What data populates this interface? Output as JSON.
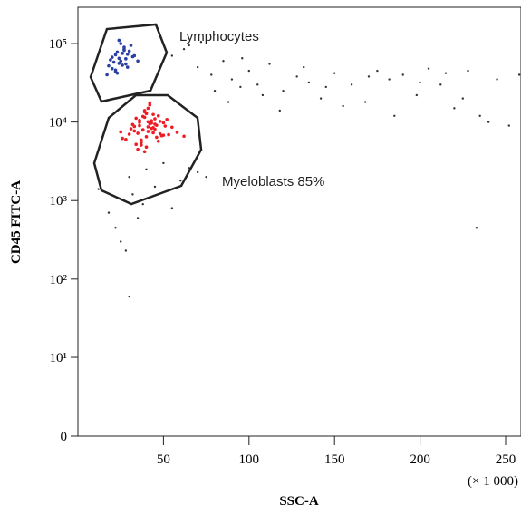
{
  "chart_data": {
    "type": "scatter",
    "xlabel": "SSC-A",
    "ylabel": "CD45 FITC-A",
    "x_unit_note": "(× 1 000)",
    "annotations": [
      "Lymphocytes",
      "Myeloblasts 85%"
    ],
    "xlim": [
      0,
      259
    ],
    "xticks": [
      50,
      100,
      150,
      200,
      250
    ],
    "ylim": [
      0,
      290000
    ],
    "yscale": "biexponential",
    "yticks": [
      0,
      {
        "value": 10,
        "label": "10¹"
      },
      {
        "value": 100,
        "label": "10²"
      },
      {
        "value": 1000,
        "label": "10³"
      },
      {
        "value": 10000,
        "label": "10⁴"
      },
      {
        "value": 100000,
        "label": "10⁵"
      }
    ],
    "series": [
      {
        "color": "#ee1c24",
        "x": [
          38,
          42,
          35,
          45,
          40,
          33,
          48,
          37,
          44,
          41,
          36,
          50,
          39,
          43,
          30,
          46,
          34,
          52,
          41,
          38,
          55,
          28,
          47,
          40,
          36,
          44,
          42,
          32,
          49,
          39,
          37,
          45,
          58,
          26,
          43,
          40,
          35,
          51,
          38,
          46,
          41,
          33,
          47,
          39,
          44,
          36,
          53,
          42,
          31,
          48,
          40,
          37,
          45,
          62,
          25,
          43,
          39,
          50,
          34,
          41
        ],
        "values": [
          8000,
          9500,
          7200,
          11000,
          6500,
          8800,
          10200,
          5900,
          12500,
          7600,
          9900,
          6800,
          13500,
          8300,
          7000,
          9100,
          5200,
          10800,
          15000,
          7900,
          8600,
          6000,
          12000,
          4800,
          10500,
          7300,
          16500,
          9300,
          6700,
          11500,
          5500,
          8100,
          7400,
          6200,
          9700,
          13000,
          4500,
          8900,
          11800,
          6400,
          10100,
          7700,
          5700,
          14000,
          8500,
          9000,
          6900,
          17500,
          8200,
          7100,
          12800,
          5100,
          9400,
          6600,
          7500,
          10400,
          4200,
          9800,
          11200,
          8700
        ]
      },
      {
        "color": "#2b3fa0",
        "x": [
          25,
          22,
          28,
          20,
          30,
          24,
          18,
          27,
          32,
          23,
          26,
          21,
          29,
          19,
          25,
          33,
          22,
          27,
          24,
          17,
          28,
          31,
          23,
          26,
          20,
          35,
          24,
          22,
          29,
          27
        ],
        "values": [
          60000,
          72000,
          55000,
          48000,
          80000,
          65000,
          52000,
          90000,
          68000,
          42000,
          75000,
          58000,
          50000,
          62000,
          100000,
          70000,
          46000,
          85000,
          56000,
          40000,
          64000,
          95000,
          78000,
          53000,
          67000,
          60000,
          110000,
          44000,
          73000,
          82000
        ]
      },
      {
        "color": "#333333",
        "x": [
          55,
          62,
          70,
          78,
          85,
          90,
          95,
          100,
          105,
          112,
          120,
          128,
          135,
          142,
          150,
          160,
          168,
          175,
          182,
          190,
          198,
          205,
          212,
          220,
          228,
          235,
          245,
          252,
          258,
          65,
          72,
          80,
          88,
          96,
          108,
          118,
          132,
          145,
          155,
          170,
          185,
          200,
          215,
          240,
          225,
          12,
          18,
          22,
          25,
          28,
          30,
          32,
          35,
          38,
          40,
          45,
          50,
          55,
          60,
          65,
          70,
          75,
          233,
          30,
          27
        ],
        "values": [
          70000,
          85000,
          50000,
          40000,
          60000,
          35000,
          28000,
          45000,
          30000,
          55000,
          25000,
          38000,
          32000,
          20000,
          42000,
          30000,
          18000,
          45000,
          35000,
          40000,
          22000,
          48000,
          30000,
          15000,
          45000,
          12000,
          35000,
          9000,
          40000,
          95000,
          105000,
          25000,
          18000,
          65000,
          22000,
          14000,
          50000,
          28000,
          16000,
          38000,
          12000,
          32000,
          42000,
          10000,
          20000,
          1400,
          700,
          450,
          300,
          230,
          2000,
          1200,
          600,
          900,
          2500,
          1500,
          3000,
          800,
          1800,
          2600,
          2300,
          2000,
          450,
          60,
          1000
        ]
      }
    ]
  }
}
